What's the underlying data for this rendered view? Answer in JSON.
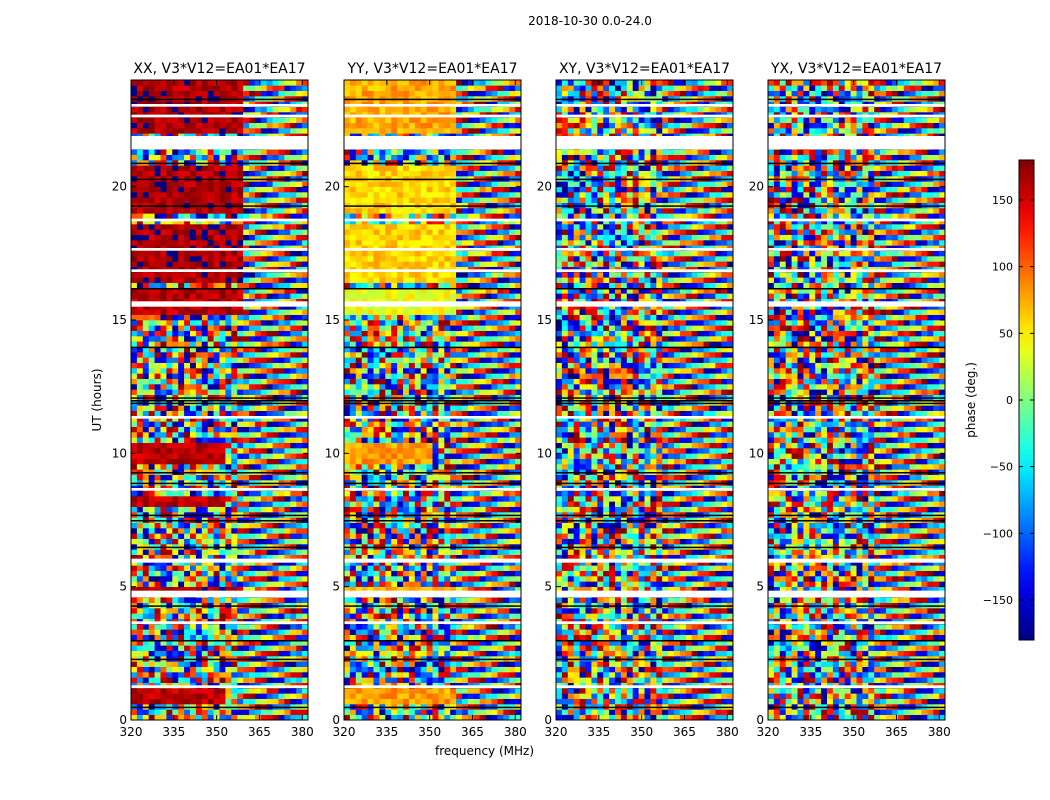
{
  "chart_data": [
    {
      "type": "heatmap",
      "title": "XX, V3*V12=EA01*EA17",
      "xlabel": "",
      "ylabel": "UT (hours)",
      "xlim": [
        320,
        382
      ],
      "ylim": [
        0,
        24
      ],
      "xticks": [
        "320",
        "335",
        "350",
        "365",
        "380"
      ],
      "yticks": [
        "0",
        "5",
        "10",
        "15",
        "20"
      ],
      "value_range": [
        -180,
        180
      ]
    },
    {
      "type": "heatmap",
      "title": "YY, V3*V12=EA01*EA17",
      "xlabel": "frequency (MHz)",
      "ylabel": "",
      "xlim": [
        320,
        382
      ],
      "ylim": [
        0,
        24
      ],
      "xticks": [
        "320",
        "335",
        "350",
        "365",
        "380"
      ],
      "yticks": [
        "0",
        "5",
        "10",
        "15",
        "20"
      ],
      "value_range": [
        -180,
        180
      ]
    },
    {
      "type": "heatmap",
      "title": "XY, V3*V12=EA01*EA17",
      "xlabel": "",
      "ylabel": "",
      "xlim": [
        320,
        382
      ],
      "ylim": [
        0,
        24
      ],
      "xticks": [
        "320",
        "335",
        "350",
        "365",
        "380"
      ],
      "yticks": [
        "0",
        "5",
        "10",
        "15",
        "20"
      ],
      "value_range": [
        -180,
        180
      ]
    },
    {
      "type": "heatmap",
      "title": "YX, V3*V12=EA01*EA17",
      "xlabel": "",
      "ylabel": "",
      "xlim": [
        320,
        382
      ],
      "ylim": [
        0,
        24
      ],
      "xticks": [
        "320",
        "335",
        "350",
        "365",
        "380"
      ],
      "yticks": [
        "0",
        "5",
        "10",
        "15",
        "20"
      ],
      "value_range": [
        -180,
        180
      ]
    }
  ],
  "figure": {
    "suptitle": "2018-10-30 0.0-24.0"
  },
  "colorbar": {
    "label": "phase (deg.)",
    "range": [
      -180,
      180
    ],
    "ticks": [
      {
        "value": 150,
        "label": "150"
      },
      {
        "value": 100,
        "label": "100"
      },
      {
        "value": 50,
        "label": "50"
      },
      {
        "value": 0,
        "label": "0"
      },
      {
        "value": -50,
        "label": "−50"
      },
      {
        "value": -100,
        "label": "−100"
      },
      {
        "value": -150,
        "label": "−150"
      }
    ],
    "colormap": "jet"
  },
  "colors": {
    "axis": "#000000",
    "background": "#ffffff",
    "flag_gap": "#ffffff",
    "row_separator": "#000000"
  }
}
